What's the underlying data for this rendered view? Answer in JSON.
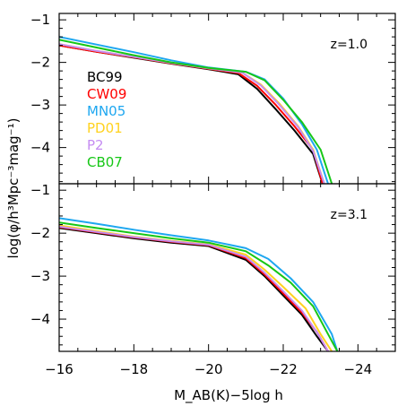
{
  "chart_data": {
    "type": "line",
    "xlabel": "M_AB(K)−5log h",
    "ylabel": "log(φ/h³Mpc⁻³mag⁻¹)",
    "xlim": [
      -16,
      -25
    ],
    "x_ticks": [
      "−16",
      "−18",
      "−20",
      "−22",
      "−24"
    ],
    "x_tick_values": [
      -16,
      -18,
      -20,
      -22,
      -24
    ],
    "legend": [
      {
        "name": "BC99",
        "color": "#000000"
      },
      {
        "name": "CW09",
        "color": "#ff0000"
      },
      {
        "name": "MN05",
        "color": "#1ea7f0"
      },
      {
        "name": "PD01",
        "color": "#ffd21f"
      },
      {
        "name": "P2",
        "color": "#c58cf2"
      },
      {
        "name": "CB07",
        "color": "#16c716"
      }
    ],
    "panels": [
      {
        "label": "z=1.0",
        "ylim": [
          -4.85,
          -0.85
        ],
        "y_ticks": [
          "−1",
          "−2",
          "−3",
          "−4"
        ],
        "y_tick_values": [
          -1,
          -2,
          -3,
          -4
        ],
        "series": [
          {
            "name": "BC99",
            "color": "#000000",
            "x": [
              -16,
              -17,
              -18,
              -19,
              -20,
              -20.8,
              -21.3,
              -21.8,
              -22.3,
              -22.8,
              -23.05
            ],
            "y": [
              -1.6,
              -1.75,
              -1.89,
              -2.03,
              -2.16,
              -2.28,
              -2.62,
              -3.1,
              -3.6,
              -4.15,
              -4.85
            ]
          },
          {
            "name": "CW09",
            "color": "#ff0000",
            "x": [
              -16,
              -17,
              -18,
              -19,
              -20,
              -20.8,
              -21.3,
              -21.8,
              -22.3,
              -22.8,
              -23.05
            ],
            "y": [
              -1.6,
              -1.75,
              -1.88,
              -2.02,
              -2.15,
              -2.25,
              -2.55,
              -3.0,
              -3.5,
              -4.05,
              -4.85
            ]
          },
          {
            "name": "MN05",
            "color": "#1ea7f0",
            "x": [
              -16,
              -17,
              -18,
              -19,
              -20,
              -21,
              -21.5,
              -22,
              -22.5,
              -22.9,
              -23.2
            ],
            "y": [
              -1.4,
              -1.58,
              -1.76,
              -1.95,
              -2.12,
              -2.22,
              -2.4,
              -2.85,
              -3.45,
              -4.05,
              -4.85
            ]
          },
          {
            "name": "PD01",
            "color": "#ffd21f",
            "x": [
              -16,
              -17,
              -18,
              -19,
              -20,
              -20.9,
              -21.4,
              -21.9,
              -22.4,
              -22.8,
              -23.1
            ],
            "y": [
              -1.57,
              -1.73,
              -1.87,
              -2.01,
              -2.14,
              -2.24,
              -2.52,
              -2.97,
              -3.5,
              -4.05,
              -4.85
            ]
          },
          {
            "name": "P2",
            "color": "#c58cf2",
            "x": [
              -16,
              -17,
              -18,
              -19,
              -20,
              -20.9,
              -21.4,
              -21.9,
              -22.4,
              -22.8,
              -23.1
            ],
            "y": [
              -1.57,
              -1.73,
              -1.87,
              -2.01,
              -2.14,
              -2.24,
              -2.54,
              -3.0,
              -3.52,
              -4.08,
              -4.85
            ]
          },
          {
            "name": "CB07",
            "color": "#16c716",
            "x": [
              -16,
              -17,
              -18,
              -19,
              -20,
              -21,
              -21.5,
              -22,
              -22.5,
              -23,
              -23.3
            ],
            "y": [
              -1.47,
              -1.65,
              -1.83,
              -2.0,
              -2.13,
              -2.22,
              -2.42,
              -2.88,
              -3.4,
              -4.05,
              -4.85
            ]
          }
        ]
      },
      {
        "label": "z=3.1",
        "ylim": [
          -4.75,
          -0.85
        ],
        "y_ticks": [
          "−1",
          "−2",
          "−3",
          "−4"
        ],
        "y_tick_values": [
          -1,
          -2,
          -3,
          -4
        ],
        "series": [
          {
            "name": "BC99",
            "color": "#000000",
            "x": [
              -16,
              -17,
              -18,
              -19,
              -20,
              -21,
              -21.5,
              -22,
              -22.5,
              -22.9,
              -23.2
            ],
            "y": [
              -1.88,
              -2.0,
              -2.12,
              -2.22,
              -2.3,
              -2.62,
              -3.0,
              -3.45,
              -3.9,
              -4.4,
              -4.75
            ]
          },
          {
            "name": "CW09",
            "color": "#ff0000",
            "x": [
              -16,
              -17,
              -18,
              -19,
              -20,
              -21,
              -21.5,
              -22,
              -22.5,
              -22.9,
              -23.2
            ],
            "y": [
              -1.86,
              -1.98,
              -2.1,
              -2.2,
              -2.28,
              -2.58,
              -2.96,
              -3.4,
              -3.85,
              -4.3,
              -4.75
            ]
          },
          {
            "name": "MN05",
            "color": "#1ea7f0",
            "x": [
              -16,
              -17,
              -18,
              -19,
              -20,
              -21,
              -21.6,
              -22.2,
              -22.8,
              -23.3,
              -23.45
            ],
            "y": [
              -1.65,
              -1.78,
              -1.92,
              -2.05,
              -2.17,
              -2.35,
              -2.6,
              -3.05,
              -3.6,
              -4.35,
              -4.75
            ]
          },
          {
            "name": "PD01",
            "color": "#ffd21f",
            "x": [
              -16,
              -17,
              -18,
              -19,
              -20,
              -21,
              -21.5,
              -22,
              -22.6,
              -23.0,
              -23.3
            ],
            "y": [
              -1.82,
              -1.95,
              -2.08,
              -2.18,
              -2.26,
              -2.5,
              -2.85,
              -3.25,
              -3.75,
              -4.35,
              -4.75
            ]
          },
          {
            "name": "P2",
            "color": "#c58cf2",
            "x": [
              -16,
              -17,
              -18,
              -19,
              -20,
              -21,
              -21.5,
              -22,
              -22.5,
              -22.9,
              -23.2
            ],
            "y": [
              -1.85,
              -1.97,
              -2.09,
              -2.19,
              -2.27,
              -2.55,
              -2.92,
              -3.35,
              -3.8,
              -4.3,
              -4.75
            ]
          },
          {
            "name": "CB07",
            "color": "#16c716",
            "x": [
              -16,
              -17,
              -18,
              -19,
              -20,
              -21,
              -21.6,
              -22.2,
              -22.8,
              -23.2,
              -23.45
            ],
            "y": [
              -1.75,
              -1.88,
              -2.0,
              -2.12,
              -2.22,
              -2.42,
              -2.75,
              -3.15,
              -3.7,
              -4.35,
              -4.75
            ]
          }
        ]
      }
    ]
  }
}
